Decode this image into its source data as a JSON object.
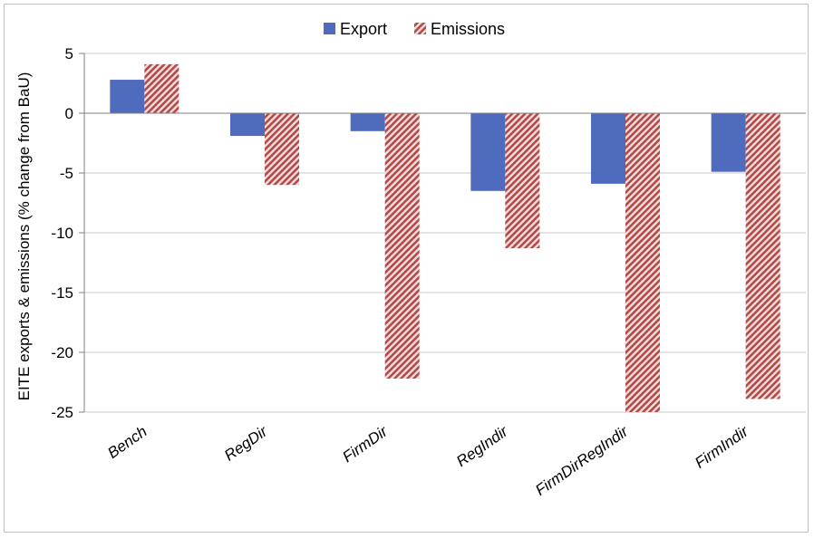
{
  "chart_data": {
    "type": "bar",
    "title": "",
    "xlabel": "",
    "ylabel": "EITE exports & emissions (% change from BaU)",
    "categories": [
      "Bench",
      "RegDir",
      "FirmDir",
      "RegIndir",
      "FirmDirRegIndir",
      "FirmIndir"
    ],
    "series": [
      {
        "name": "Export",
        "values": [
          2.8,
          -1.9,
          -1.5,
          -6.5,
          -5.9,
          -4.9
        ],
        "color": "#4f6bbd",
        "pattern": "solid"
      },
      {
        "name": "Emissions",
        "values": [
          4.1,
          -6.0,
          -22.2,
          -11.3,
          -25.0,
          -23.9
        ],
        "color": "#c0504d",
        "pattern": "diagonal-hatch"
      }
    ],
    "ylim": [
      -25,
      5
    ],
    "yticks": [
      5,
      0,
      -5,
      -10,
      -15,
      -20,
      -25
    ],
    "grid": true,
    "legend": "top-center"
  }
}
